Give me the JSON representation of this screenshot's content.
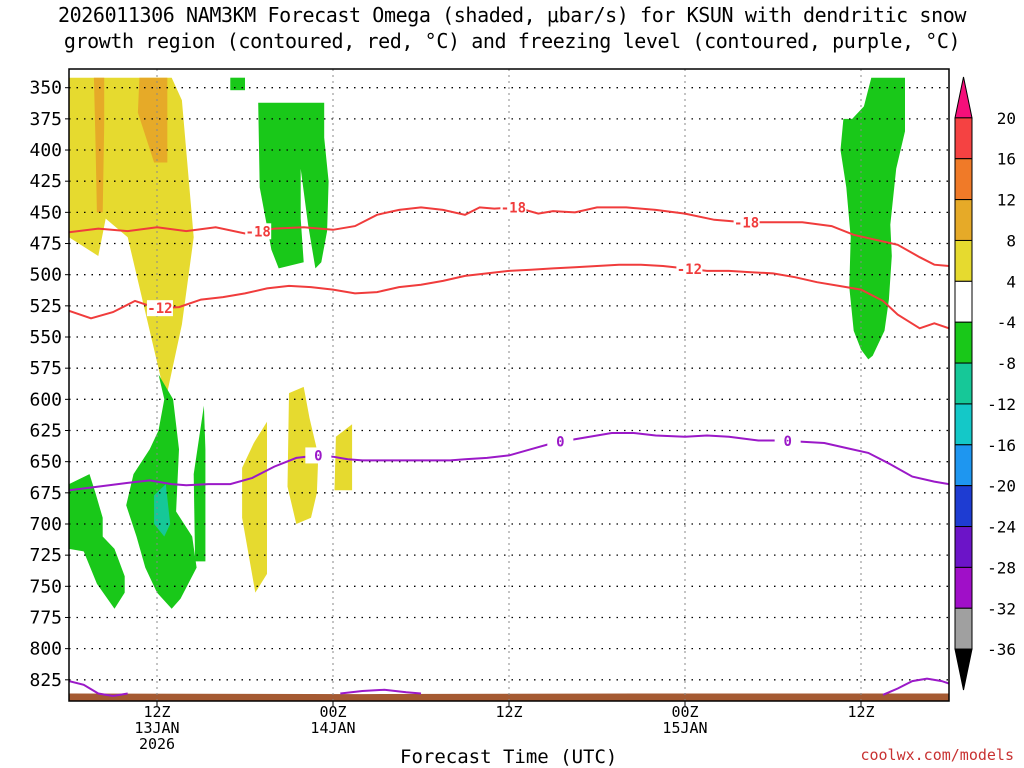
{
  "title": {
    "line1": "2026011306 NAM3KM Forecast Omega (shaded, μbar/s) for KSUN with dendritic snow",
    "line2": "growth region (contoured, red, °C) and freezing level (contoured, purple, °C)"
  },
  "watermark": "coolwx.com/models",
  "chart_data": {
    "type": "heatmap",
    "xlabel": "Forecast Time (UTC)",
    "x_unit": "forecast hour",
    "xlim": [
      0,
      60
    ],
    "ylim": [
      335,
      842
    ],
    "y_ticks": [
      350,
      375,
      400,
      425,
      450,
      475,
      500,
      525,
      550,
      575,
      600,
      625,
      650,
      675,
      700,
      725,
      750,
      775,
      800,
      825
    ],
    "x_ticks": [
      {
        "x": 6,
        "labels": [
          "12Z",
          "13JAN",
          "2026"
        ]
      },
      {
        "x": 18,
        "labels": [
          "00Z",
          "14JAN"
        ]
      },
      {
        "x": 30,
        "labels": [
          "12Z"
        ]
      },
      {
        "x": 42,
        "labels": [
          "00Z",
          "15JAN"
        ]
      },
      {
        "x": 54,
        "labels": [
          "12Z"
        ]
      }
    ],
    "grid": true,
    "colorbar": {
      "labels": [
        "20",
        "16",
        "12",
        "8",
        "4",
        "-4",
        "-8",
        "-12",
        "-16",
        "-20",
        "-24",
        "-28",
        "-32",
        "-36"
      ],
      "colors": [
        "#f50f7a",
        "#f54242",
        "#f07a28",
        "#e6aa28",
        "#e6da2f",
        "#ffffff",
        "#19c819",
        "#16c898",
        "#14c8c8",
        "#1e96f0",
        "#1e3cd2",
        "#6c14c8",
        "#a00fc8",
        "#a0a0a0",
        "#000000"
      ]
    },
    "omega_regions": [
      {
        "level": "4",
        "color": "#e6da2f",
        "points": [
          [
            0,
            342
          ],
          [
            7,
            342
          ],
          [
            7.7,
            360
          ],
          [
            8.5,
            470
          ],
          [
            7.7,
            540
          ],
          [
            6.6,
            600
          ],
          [
            5.8,
            560
          ],
          [
            4,
            470
          ],
          [
            2.5,
            455
          ],
          [
            2,
            485
          ],
          [
            0,
            470
          ]
        ]
      },
      {
        "level": "8",
        "color": "#e6aa28",
        "points": [
          [
            1.7,
            342
          ],
          [
            2.4,
            342
          ],
          [
            2.4,
            380
          ],
          [
            2.3,
            450
          ],
          [
            1.9,
            450
          ],
          [
            1.8,
            390
          ]
        ]
      },
      {
        "level": "8",
        "color": "#e6aa28",
        "points": [
          [
            4.8,
            342
          ],
          [
            6.7,
            342
          ],
          [
            6.7,
            410
          ],
          [
            5.8,
            410
          ],
          [
            4.7,
            370
          ]
        ]
      },
      {
        "level": "4",
        "color": "#e6da2f",
        "points": [
          [
            12.6,
            635
          ],
          [
            13.5,
            618
          ],
          [
            13.5,
            740
          ],
          [
            12.7,
            755
          ],
          [
            11.8,
            695
          ],
          [
            11.8,
            655
          ]
        ]
      },
      {
        "level": "4",
        "color": "#e6da2f",
        "points": [
          [
            15,
            595
          ],
          [
            16,
            590
          ],
          [
            16.4,
            615
          ],
          [
            17,
            645
          ],
          [
            16.9,
            675
          ],
          [
            16.5,
            695
          ],
          [
            15.5,
            700
          ],
          [
            14.9,
            670
          ]
        ]
      },
      {
        "level": "4",
        "color": "#e6da2f",
        "points": [
          [
            18.2,
            630
          ],
          [
            19.3,
            620
          ],
          [
            19.3,
            673
          ],
          [
            18.1,
            673
          ]
        ]
      },
      {
        "level": "-4",
        "color": "#19c819",
        "points": [
          [
            11,
            342
          ],
          [
            12,
            342
          ],
          [
            12,
            352
          ],
          [
            11,
            352
          ]
        ]
      },
      {
        "level": "-4",
        "color": "#19c819",
        "points": [
          [
            12.9,
            362
          ],
          [
            17.4,
            362
          ],
          [
            17.4,
            390
          ],
          [
            17.7,
            425
          ],
          [
            17.6,
            465
          ],
          [
            17.2,
            490
          ],
          [
            16.8,
            495
          ],
          [
            16.3,
            460
          ],
          [
            15.8,
            415
          ],
          [
            15.8,
            455
          ],
          [
            16,
            490
          ],
          [
            14.3,
            495
          ],
          [
            13.8,
            480
          ],
          [
            13,
            430
          ]
        ]
      },
      {
        "level": "-4",
        "color": "#19c819",
        "points": [
          [
            0,
            668
          ],
          [
            1.4,
            660
          ],
          [
            1.8,
            675
          ],
          [
            2.3,
            695
          ],
          [
            2.3,
            710
          ],
          [
            3.1,
            720
          ],
          [
            3.8,
            742
          ],
          [
            3.8,
            755
          ],
          [
            3.1,
            768
          ],
          [
            1.9,
            748
          ],
          [
            1,
            722
          ],
          [
            0,
            720
          ]
        ]
      },
      {
        "level": "-4",
        "color": "#19c819",
        "points": [
          [
            5.5,
            640
          ],
          [
            6.1,
            625
          ],
          [
            6.5,
            600
          ],
          [
            6.1,
            580
          ],
          [
            7.1,
            600
          ],
          [
            7.5,
            640
          ],
          [
            7.3,
            690
          ],
          [
            8.4,
            710
          ],
          [
            8.7,
            735
          ],
          [
            7.6,
            760
          ],
          [
            7,
            768
          ],
          [
            6,
            755
          ],
          [
            5.2,
            735
          ],
          [
            4.6,
            710
          ],
          [
            3.9,
            685
          ],
          [
            4.4,
            660
          ]
        ]
      },
      {
        "level": "-4",
        "color": "#19c819",
        "points": [
          [
            8.5,
            660
          ],
          [
            9.2,
            605
          ],
          [
            9.3,
            640
          ],
          [
            9.3,
            730
          ],
          [
            8.6,
            730
          ]
        ]
      },
      {
        "level": "-4",
        "color": "#19c819",
        "points": [
          [
            54.7,
            342
          ],
          [
            57,
            342
          ],
          [
            57,
            385
          ],
          [
            56.4,
            415
          ],
          [
            56,
            460
          ],
          [
            56.1,
            485
          ],
          [
            55.9,
            520
          ],
          [
            55.6,
            545
          ],
          [
            54.8,
            565
          ],
          [
            54.5,
            568
          ],
          [
            54,
            560
          ],
          [
            53.5,
            545
          ],
          [
            53.2,
            510
          ],
          [
            53.3,
            470
          ],
          [
            53,
            430
          ],
          [
            52.6,
            400
          ],
          [
            52.8,
            375
          ],
          [
            53.4,
            375
          ],
          [
            54.2,
            365
          ]
        ]
      },
      {
        "level": "-8",
        "color": "#16c898",
        "points": [
          [
            5.8,
            677
          ],
          [
            6.6,
            668
          ],
          [
            6.9,
            700
          ],
          [
            6.5,
            710
          ],
          [
            5.8,
            700
          ]
        ]
      }
    ],
    "isotherms": [
      {
        "label": "-18",
        "color": "#f03c3c",
        "label_x": [
          12.9,
          30.3,
          46.2
        ],
        "points": [
          [
            0,
            466
          ],
          [
            2,
            463
          ],
          [
            4,
            465
          ],
          [
            6,
            462
          ],
          [
            8,
            465
          ],
          [
            10,
            462
          ],
          [
            12,
            467
          ],
          [
            14,
            463
          ],
          [
            16,
            462
          ],
          [
            18,
            464
          ],
          [
            19.5,
            461
          ],
          [
            21,
            452
          ],
          [
            22.5,
            448
          ],
          [
            24,
            446
          ],
          [
            25.5,
            448
          ],
          [
            27,
            452
          ],
          [
            28,
            446
          ],
          [
            29,
            447
          ],
          [
            30.5,
            446
          ],
          [
            32,
            451
          ],
          [
            33,
            449
          ],
          [
            34.5,
            450
          ],
          [
            36,
            446
          ],
          [
            38,
            446
          ],
          [
            40,
            448
          ],
          [
            42,
            451
          ],
          [
            44,
            456
          ],
          [
            46,
            458
          ],
          [
            48,
            458
          ],
          [
            50,
            458
          ],
          [
            52,
            461
          ],
          [
            53.5,
            468
          ],
          [
            55,
            472
          ],
          [
            56.5,
            476
          ],
          [
            58,
            486
          ],
          [
            59,
            492
          ],
          [
            60,
            493
          ]
        ]
      },
      {
        "label": "-12",
        "color": "#f03c3c",
        "label_x": [
          6.2,
          42.3
        ],
        "points": [
          [
            0,
            529
          ],
          [
            1.5,
            535
          ],
          [
            3,
            530
          ],
          [
            4.5,
            521
          ],
          [
            6,
            527
          ],
          [
            7.5,
            526
          ],
          [
            9,
            520
          ],
          [
            10.5,
            518
          ],
          [
            12,
            515
          ],
          [
            13.5,
            511
          ],
          [
            15,
            509
          ],
          [
            16.5,
            510
          ],
          [
            18,
            512
          ],
          [
            19.5,
            515
          ],
          [
            21,
            514
          ],
          [
            22.5,
            510
          ],
          [
            24,
            508
          ],
          [
            25.5,
            505
          ],
          [
            27,
            501
          ],
          [
            28.5,
            499
          ],
          [
            30,
            497
          ],
          [
            31.5,
            496
          ],
          [
            33,
            495
          ],
          [
            34.5,
            494
          ],
          [
            36,
            493
          ],
          [
            37.5,
            492
          ],
          [
            39,
            492
          ],
          [
            40.5,
            493
          ],
          [
            42,
            495
          ],
          [
            43.5,
            497
          ],
          [
            45,
            497
          ],
          [
            46.5,
            498
          ],
          [
            48,
            499
          ],
          [
            49.5,
            502
          ],
          [
            51,
            506
          ],
          [
            52.5,
            509
          ],
          [
            54,
            512
          ],
          [
            55.5,
            521
          ],
          [
            56.5,
            532
          ],
          [
            58,
            543
          ],
          [
            59,
            539
          ],
          [
            60,
            543
          ]
        ]
      },
      {
        "label": "0",
        "color": "#9b19c8",
        "label_x": [
          17,
          33.5,
          49
        ],
        "points": [
          [
            0,
            673
          ],
          [
            2,
            670
          ],
          [
            4,
            667
          ],
          [
            5.5,
            665
          ],
          [
            7,
            668
          ],
          [
            8,
            669
          ],
          [
            9.5,
            668
          ],
          [
            11,
            668
          ],
          [
            12.5,
            663
          ],
          [
            14,
            654
          ],
          [
            15.5,
            647
          ],
          [
            17,
            645
          ],
          [
            18,
            646
          ],
          [
            19,
            648
          ],
          [
            20,
            649
          ],
          [
            22,
            649
          ],
          [
            24,
            649
          ],
          [
            26,
            649
          ],
          [
            27,
            648
          ],
          [
            28.5,
            647
          ],
          [
            30,
            645
          ],
          [
            31.5,
            640
          ],
          [
            33,
            635
          ],
          [
            35,
            631
          ],
          [
            37,
            627
          ],
          [
            38.5,
            627
          ],
          [
            40,
            629
          ],
          [
            42,
            630
          ],
          [
            43.5,
            629
          ],
          [
            45,
            630
          ],
          [
            47,
            633
          ],
          [
            48.5,
            633
          ],
          [
            50,
            634
          ],
          [
            51.5,
            635
          ],
          [
            53,
            639
          ],
          [
            54.5,
            643
          ],
          [
            56,
            652
          ],
          [
            57.5,
            662
          ],
          [
            59,
            666
          ],
          [
            60,
            668
          ]
        ]
      },
      {
        "label": "",
        "color": "#9b19c8",
        "label_x": [],
        "points": [
          [
            0,
            826
          ],
          [
            1,
            829
          ],
          [
            2,
            836
          ],
          [
            3,
            838
          ],
          [
            4,
            836
          ]
        ]
      },
      {
        "label": "",
        "color": "#9b19c8",
        "label_x": [],
        "points": [
          [
            18.5,
            836
          ],
          [
            20,
            834
          ],
          [
            21.5,
            833
          ],
          [
            23,
            835
          ],
          [
            24,
            836
          ]
        ]
      },
      {
        "label": "",
        "color": "#9b19c8",
        "label_x": [],
        "points": [
          [
            55.5,
            837
          ],
          [
            56.5,
            832
          ],
          [
            57.5,
            826
          ],
          [
            58.5,
            824
          ],
          [
            59.5,
            826
          ],
          [
            60,
            828
          ]
        ]
      }
    ],
    "terrain": {
      "label": "",
      "color": "#a55a32",
      "points": [
        [
          0,
          843
        ],
        [
          0,
          836
        ],
        [
          20,
          836.5
        ],
        [
          40,
          836
        ],
        [
          60,
          836
        ],
        [
          60,
          843
        ]
      ]
    }
  }
}
